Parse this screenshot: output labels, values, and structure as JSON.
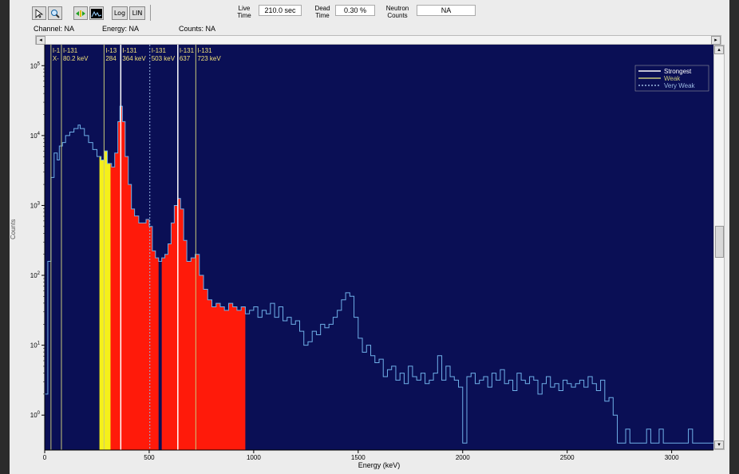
{
  "toolbar": {
    "buttons": [
      "pointer",
      "zoom",
      "fit",
      "spectrum"
    ],
    "log_label": "Log",
    "lin_label": "LIN",
    "live_time_label": "Live\nTime",
    "live_time_value": "210.0 sec",
    "dead_time_label": "Dead\nTime",
    "dead_time_value": "0.30 %",
    "neutron_label": "Neutron\nCounts",
    "neutron_value": "NA"
  },
  "info": {
    "channel": "Channel: NA",
    "energy": "Energy: NA",
    "counts": "Counts: NA"
  },
  "colors": {
    "plot_bg": "#0a0f55",
    "trace": "#6fb0e8",
    "fill_red": "#ff1a0a",
    "fill_yellow": "#f5f01a",
    "strongest": "#ffffff",
    "weak": "#c8c87a",
    "very_weak": "#9ab8e0",
    "marker_label": "#f2e27a"
  },
  "chart_data": {
    "type": "line",
    "title": "",
    "xlabel": "Energy (keV)",
    "ylabel": "Counts",
    "xlim": [
      0,
      3200
    ],
    "ylim_log10": [
      -0.5,
      5.3
    ],
    "xticks": [
      "0",
      "500",
      "1000",
      "1500",
      "2000",
      "2500",
      "3000"
    ],
    "yticks": [
      "10^0",
      "10^1",
      "10^2",
      "10^3",
      "10^4",
      "10^5"
    ],
    "legend": {
      "placement": "top-right",
      "entries": [
        "Strongest",
        "Weak",
        "Very Weak"
      ]
    },
    "markers": [
      {
        "e": 30,
        "top": "I-1",
        "bottom": "X-",
        "strength": "weak"
      },
      {
        "e": 80,
        "top": "I-131",
        "bottom": "80.2 keV",
        "strength": "weak"
      },
      {
        "e": 284,
        "top": "I-13",
        "bottom": "284",
        "strength": "weak"
      },
      {
        "e": 364,
        "top": "I-131",
        "bottom": "364 keV",
        "strength": "strongest"
      },
      {
        "e": 503,
        "top": "I-131",
        "bottom": "503 keV",
        "strength": "very_weak"
      },
      {
        "e": 637,
        "top": "I-131",
        "bottom": "637",
        "strength": "strongest"
      },
      {
        "e": 723,
        "top": "I-131",
        "bottom": "723 keV",
        "strength": "weak"
      }
    ],
    "spectrum": [
      [
        0,
        0.3
      ],
      [
        15,
        2.2
      ],
      [
        30,
        3.4
      ],
      [
        45,
        3.75
      ],
      [
        60,
        3.65
      ],
      [
        70,
        3.85
      ],
      [
        85,
        3.9
      ],
      [
        100,
        4.0
      ],
      [
        120,
        4.05
      ],
      [
        140,
        4.1
      ],
      [
        160,
        4.15
      ],
      [
        170,
        4.1
      ],
      [
        190,
        4.0
      ],
      [
        210,
        3.9
      ],
      [
        230,
        3.8
      ],
      [
        250,
        3.7
      ],
      [
        270,
        3.65
      ],
      [
        285,
        3.78
      ],
      [
        300,
        3.6
      ],
      [
        320,
        3.55
      ],
      [
        335,
        3.75
      ],
      [
        350,
        4.2
      ],
      [
        360,
        4.42
      ],
      [
        372,
        4.2
      ],
      [
        385,
        3.7
      ],
      [
        400,
        3.3
      ],
      [
        415,
        2.95
      ],
      [
        430,
        2.85
      ],
      [
        450,
        2.75
      ],
      [
        470,
        2.75
      ],
      [
        485,
        2.8
      ],
      [
        500,
        2.7
      ],
      [
        515,
        2.35
      ],
      [
        530,
        2.25
      ],
      [
        545,
        2.2
      ],
      [
        560,
        2.25
      ],
      [
        575,
        2.3
      ],
      [
        590,
        2.45
      ],
      [
        605,
        2.75
      ],
      [
        620,
        3.0
      ],
      [
        637,
        3.1
      ],
      [
        650,
        2.95
      ],
      [
        665,
        2.5
      ],
      [
        680,
        2.2
      ],
      [
        700,
        2.25
      ],
      [
        720,
        2.3
      ],
      [
        740,
        2.0
      ],
      [
        760,
        1.8
      ],
      [
        780,
        1.65
      ],
      [
        800,
        1.55
      ],
      [
        820,
        1.6
      ],
      [
        840,
        1.55
      ],
      [
        860,
        1.5
      ],
      [
        880,
        1.6
      ],
      [
        900,
        1.55
      ],
      [
        920,
        1.5
      ],
      [
        940,
        1.55
      ],
      [
        960,
        1.45
      ],
      [
        980,
        1.5
      ],
      [
        1000,
        1.55
      ],
      [
        1020,
        1.4
      ],
      [
        1040,
        1.5
      ],
      [
        1060,
        1.45
      ],
      [
        1080,
        1.6
      ],
      [
        1100,
        1.4
      ],
      [
        1120,
        1.55
      ],
      [
        1140,
        1.35
      ],
      [
        1160,
        1.4
      ],
      [
        1180,
        1.3
      ],
      [
        1200,
        1.35
      ],
      [
        1220,
        1.2
      ],
      [
        1240,
        1.0
      ],
      [
        1260,
        1.05
      ],
      [
        1280,
        1.2
      ],
      [
        1300,
        1.15
      ],
      [
        1320,
        1.3
      ],
      [
        1340,
        1.25
      ],
      [
        1360,
        1.3
      ],
      [
        1380,
        1.4
      ],
      [
        1400,
        1.5
      ],
      [
        1420,
        1.65
      ],
      [
        1440,
        1.75
      ],
      [
        1460,
        1.7
      ],
      [
        1480,
        1.4
      ],
      [
        1500,
        1.1
      ],
      [
        1520,
        0.9
      ],
      [
        1540,
        1.0
      ],
      [
        1560,
        0.85
      ],
      [
        1580,
        0.75
      ],
      [
        1600,
        0.8
      ],
      [
        1620,
        0.55
      ],
      [
        1640,
        0.65
      ],
      [
        1660,
        0.7
      ],
      [
        1680,
        0.5
      ],
      [
        1700,
        0.6
      ],
      [
        1720,
        0.45
      ],
      [
        1740,
        0.7
      ],
      [
        1760,
        0.55
      ],
      [
        1780,
        0.5
      ],
      [
        1800,
        0.6
      ],
      [
        1820,
        0.45
      ],
      [
        1840,
        0.5
      ],
      [
        1860,
        0.6
      ],
      [
        1880,
        0.85
      ],
      [
        1900,
        0.5
      ],
      [
        1920,
        0.7
      ],
      [
        1940,
        0.55
      ],
      [
        1960,
        0.5
      ],
      [
        1980,
        0.4
      ],
      [
        2000,
        -0.4
      ],
      [
        2020,
        0.55
      ],
      [
        2040,
        0.6
      ],
      [
        2060,
        0.45
      ],
      [
        2080,
        0.5
      ],
      [
        2100,
        0.55
      ],
      [
        2120,
        0.4
      ],
      [
        2140,
        0.6
      ],
      [
        2160,
        0.5
      ],
      [
        2180,
        0.65
      ],
      [
        2200,
        0.45
      ],
      [
        2220,
        0.5
      ],
      [
        2240,
        0.35
      ],
      [
        2260,
        0.6
      ],
      [
        2280,
        0.5
      ],
      [
        2300,
        0.45
      ],
      [
        2320,
        0.55
      ],
      [
        2340,
        0.5
      ],
      [
        2360,
        0.3
      ],
      [
        2380,
        0.45
      ],
      [
        2400,
        0.55
      ],
      [
        2420,
        0.4
      ],
      [
        2440,
        0.45
      ],
      [
        2460,
        0.35
      ],
      [
        2480,
        0.5
      ],
      [
        2500,
        0.45
      ],
      [
        2520,
        0.4
      ],
      [
        2540,
        0.45
      ],
      [
        2560,
        0.5
      ],
      [
        2580,
        0.4
      ],
      [
        2600,
        0.55
      ],
      [
        2620,
        0.45
      ],
      [
        2640,
        0.35
      ],
      [
        2660,
        0.5
      ],
      [
        2680,
        0.2
      ],
      [
        2700,
        0.25
      ],
      [
        2720,
        0.0
      ],
      [
        2740,
        -0.4
      ],
      [
        2760,
        -0.4
      ],
      [
        2780,
        -0.2
      ],
      [
        2800,
        -0.4
      ],
      [
        2820,
        -0.4
      ],
      [
        2840,
        -0.4
      ],
      [
        2860,
        -0.4
      ],
      [
        2880,
        -0.2
      ],
      [
        2900,
        -0.4
      ],
      [
        2920,
        -0.4
      ],
      [
        2940,
        -0.2
      ],
      [
        2960,
        -0.4
      ],
      [
        2980,
        -0.4
      ],
      [
        3000,
        -0.4
      ],
      [
        3020,
        -0.4
      ],
      [
        3040,
        -0.4
      ],
      [
        3060,
        -0.4
      ],
      [
        3080,
        -0.2
      ],
      [
        3100,
        -0.4
      ],
      [
        3120,
        -0.4
      ],
      [
        3140,
        -0.4
      ],
      [
        3160,
        -0.4
      ],
      [
        3180,
        -0.4
      ],
      [
        3200,
        -0.4
      ]
    ],
    "filled_regions": [
      {
        "from": 262,
        "to": 315,
        "color": "yellow"
      },
      {
        "from": 315,
        "to": 545,
        "color": "red"
      },
      {
        "from": 560,
        "to": 960,
        "color": "red"
      }
    ]
  }
}
